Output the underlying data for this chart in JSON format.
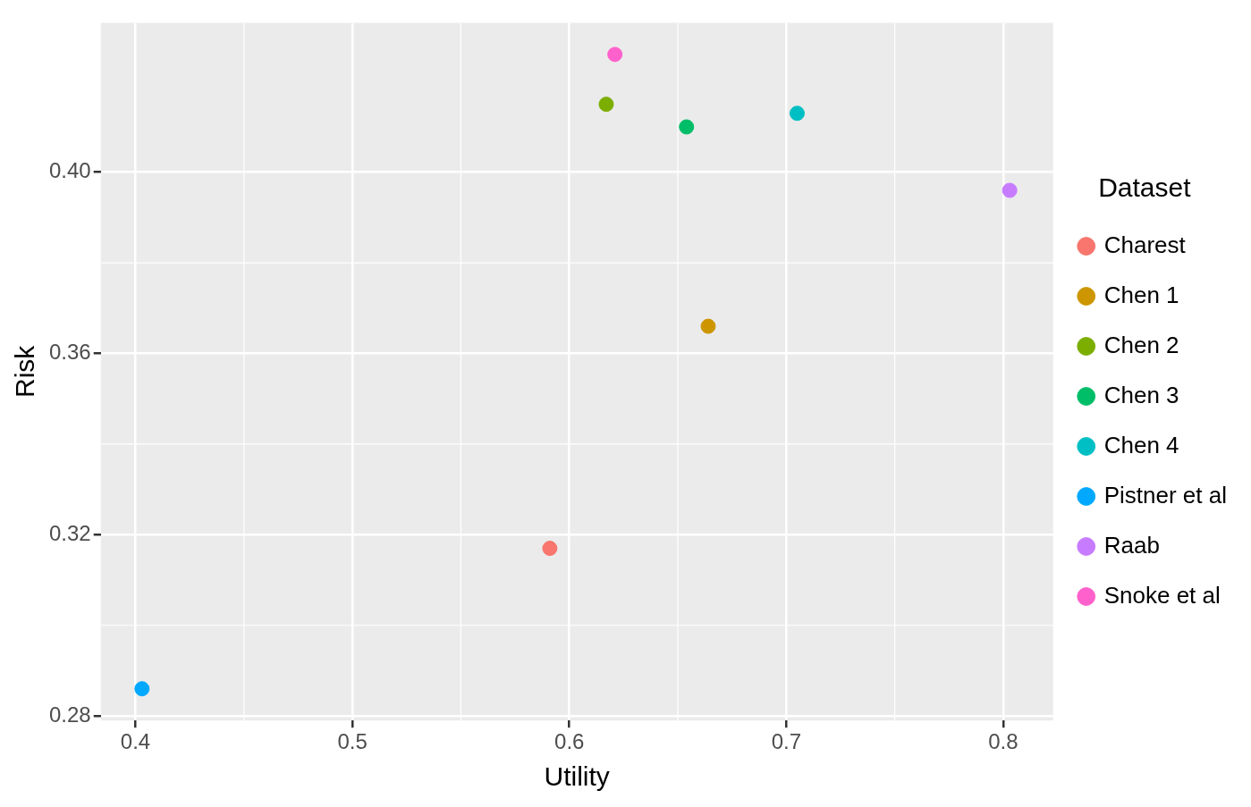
{
  "chart_data": {
    "type": "scatter",
    "xlabel": "Utility",
    "ylabel": "Risk",
    "legend_title": "Dataset",
    "legend": "right",
    "grid": true,
    "marker": "circle",
    "xlim": [
      0.384,
      0.823
    ],
    "xticks": [
      {
        "value": 0.4,
        "label": "0.4"
      },
      {
        "value": 0.5,
        "label": "0.5"
      },
      {
        "value": 0.6,
        "label": "0.6"
      },
      {
        "value": 0.7,
        "label": "0.7"
      },
      {
        "value": 0.8,
        "label": "0.8"
      }
    ],
    "ylim": [
      0.279,
      0.433
    ],
    "yticks": [
      {
        "value": 0.28,
        "label": "0.28"
      },
      {
        "value": 0.32,
        "label": "0.32"
      },
      {
        "value": 0.36,
        "label": "0.36"
      },
      {
        "value": 0.4,
        "label": "0.40"
      }
    ],
    "series": [
      {
        "name": "Charest",
        "color": "#f8766d",
        "x": [
          0.591
        ],
        "values": [
          0.317
        ]
      },
      {
        "name": "Chen 1",
        "color": "#cd9600",
        "x": [
          0.664
        ],
        "values": [
          0.366
        ]
      },
      {
        "name": "Chen 2",
        "color": "#7cae00",
        "x": [
          0.617
        ],
        "values": [
          0.415
        ]
      },
      {
        "name": "Chen 3",
        "color": "#00be67",
        "x": [
          0.654
        ],
        "values": [
          0.41
        ]
      },
      {
        "name": "Chen 4",
        "color": "#00bfc4",
        "x": [
          0.705
        ],
        "values": [
          0.413
        ]
      },
      {
        "name": "Pistner et al",
        "color": "#00a9ff",
        "x": [
          0.403
        ],
        "values": [
          0.286
        ]
      },
      {
        "name": "Raab",
        "color": "#c77cff",
        "x": [
          0.803
        ],
        "values": [
          0.396
        ]
      },
      {
        "name": "Snoke et al",
        "color": "#ff61cc",
        "x": [
          0.621
        ],
        "values": [
          0.426
        ]
      }
    ]
  }
}
